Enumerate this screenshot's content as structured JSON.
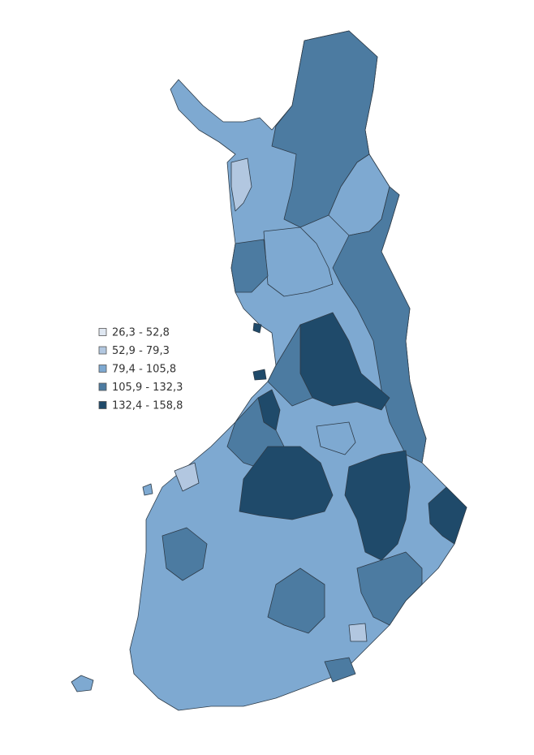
{
  "legend": {
    "items": [
      {
        "label": "26,3 - 52,8",
        "color": "#dfe7f1"
      },
      {
        "label": "52,9 - 79,3",
        "color": "#b2c7e0"
      },
      {
        "label": "79,4 - 105,8",
        "color": "#7ea9d1"
      },
      {
        "label": "105,9 - 132,3",
        "color": "#4c7ba1"
      },
      {
        "label": "132,4 - 158,8",
        "color": "#1f4a6a"
      }
    ]
  }
}
